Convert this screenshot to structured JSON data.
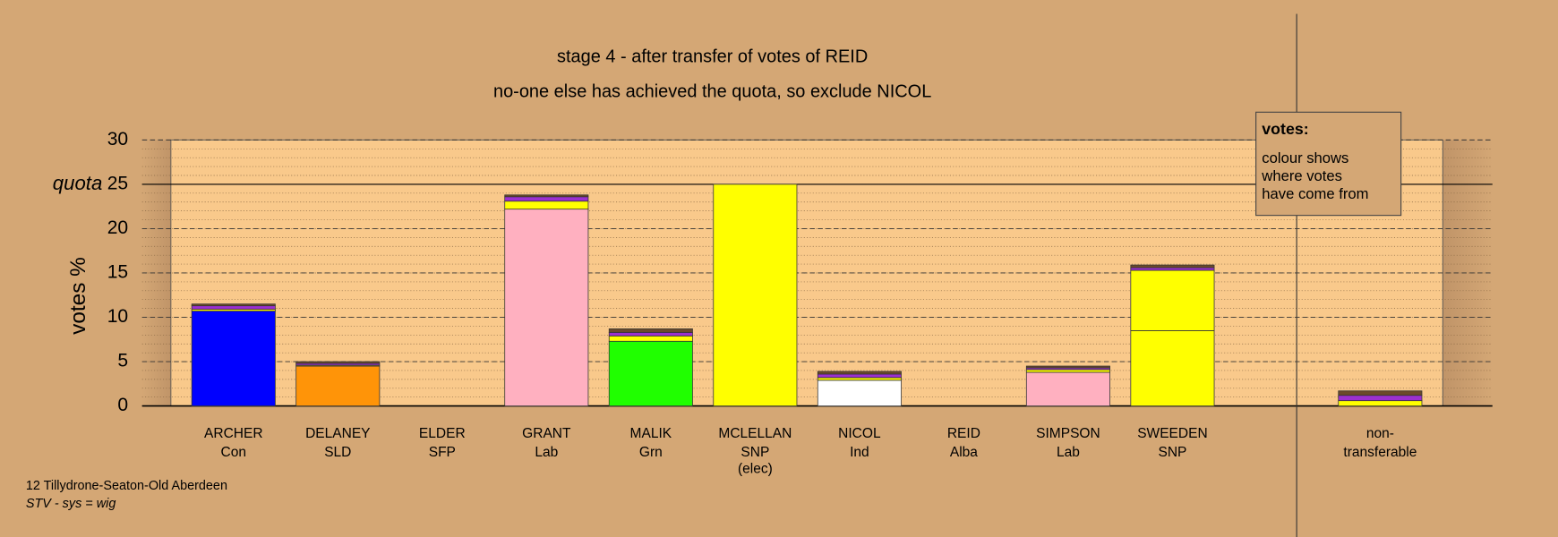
{
  "chart_data": {
    "type": "bar",
    "stacked": true,
    "title": "stage 4 - after transfer of votes of REID",
    "subtitle": "no-one else has achieved the quota, so exclude NICOL",
    "y_label": "votes %",
    "categories": [
      "ARCHER",
      "DELANEY",
      "ELDER",
      "GRANT",
      "MALIK",
      "MCLELLAN",
      "NICOL",
      "REID",
      "SIMPSON",
      "SWEEDEN",
      "non-"
    ],
    "parties": [
      "Con",
      "SLD",
      "SFP",
      "Lab",
      "Grn",
      "SNP",
      "Ind",
      "Alba",
      "Lab",
      "SNP",
      "transferable"
    ],
    "notes": [
      null,
      null,
      null,
      null,
      null,
      "(elec)",
      null,
      null,
      null,
      null,
      null
    ],
    "series": [
      {
        "color": "#0000ff",
        "values": [
          10.7,
          0,
          0,
          0,
          0,
          0,
          0,
          0,
          0,
          0,
          0
        ]
      },
      {
        "color": "#ff9408",
        "values": [
          0,
          4.5,
          0,
          0,
          0,
          0,
          0,
          0,
          0,
          0,
          0
        ]
      },
      {
        "color": "#ffb0c0",
        "values": [
          0,
          0,
          0,
          22.2,
          0,
          0,
          0,
          0,
          3.8,
          0,
          0
        ]
      },
      {
        "color": "#20ff00",
        "values": [
          0,
          0,
          0,
          0,
          7.3,
          0,
          0,
          0,
          0,
          0,
          0
        ]
      },
      {
        "color": "#ffff00",
        "values": [
          0,
          0,
          0,
          0,
          0,
          25.0,
          0,
          0,
          0,
          8.5,
          0
        ]
      },
      {
        "color": "#ffffff",
        "values": [
          0,
          0,
          0,
          0,
          0,
          0,
          2.9,
          0,
          0,
          0,
          0
        ]
      },
      {
        "color": "#ffff00",
        "values": [
          0.2,
          0.1,
          0,
          0.9,
          0.6,
          0,
          0.3,
          0,
          0.3,
          6.8,
          0.6
        ]
      },
      {
        "color": "#9b30d0",
        "values": [
          0.4,
          0.2,
          0,
          0.5,
          0.4,
          0,
          0.4,
          0,
          0.2,
          0.3,
          0.6
        ]
      },
      {
        "color": "#6b4a2a",
        "values": [
          0.2,
          0.2,
          0,
          0.2,
          0.4,
          0,
          0.3,
          0,
          0.2,
          0.3,
          0.5
        ]
      }
    ],
    "ylim": [
      0,
      30
    ],
    "yticks": [
      0,
      5,
      10,
      15,
      20,
      25,
      30
    ],
    "minor_step": 1,
    "quota": 25,
    "quota_label": "quota",
    "legend_box": {
      "title": "votes:",
      "lines": [
        "colour shows",
        "where votes",
        "have come from"
      ]
    },
    "footer": {
      "ward": "12 Tillydrone-Seaton-Old Aberdeen",
      "system": "STV - sys = wig"
    }
  }
}
